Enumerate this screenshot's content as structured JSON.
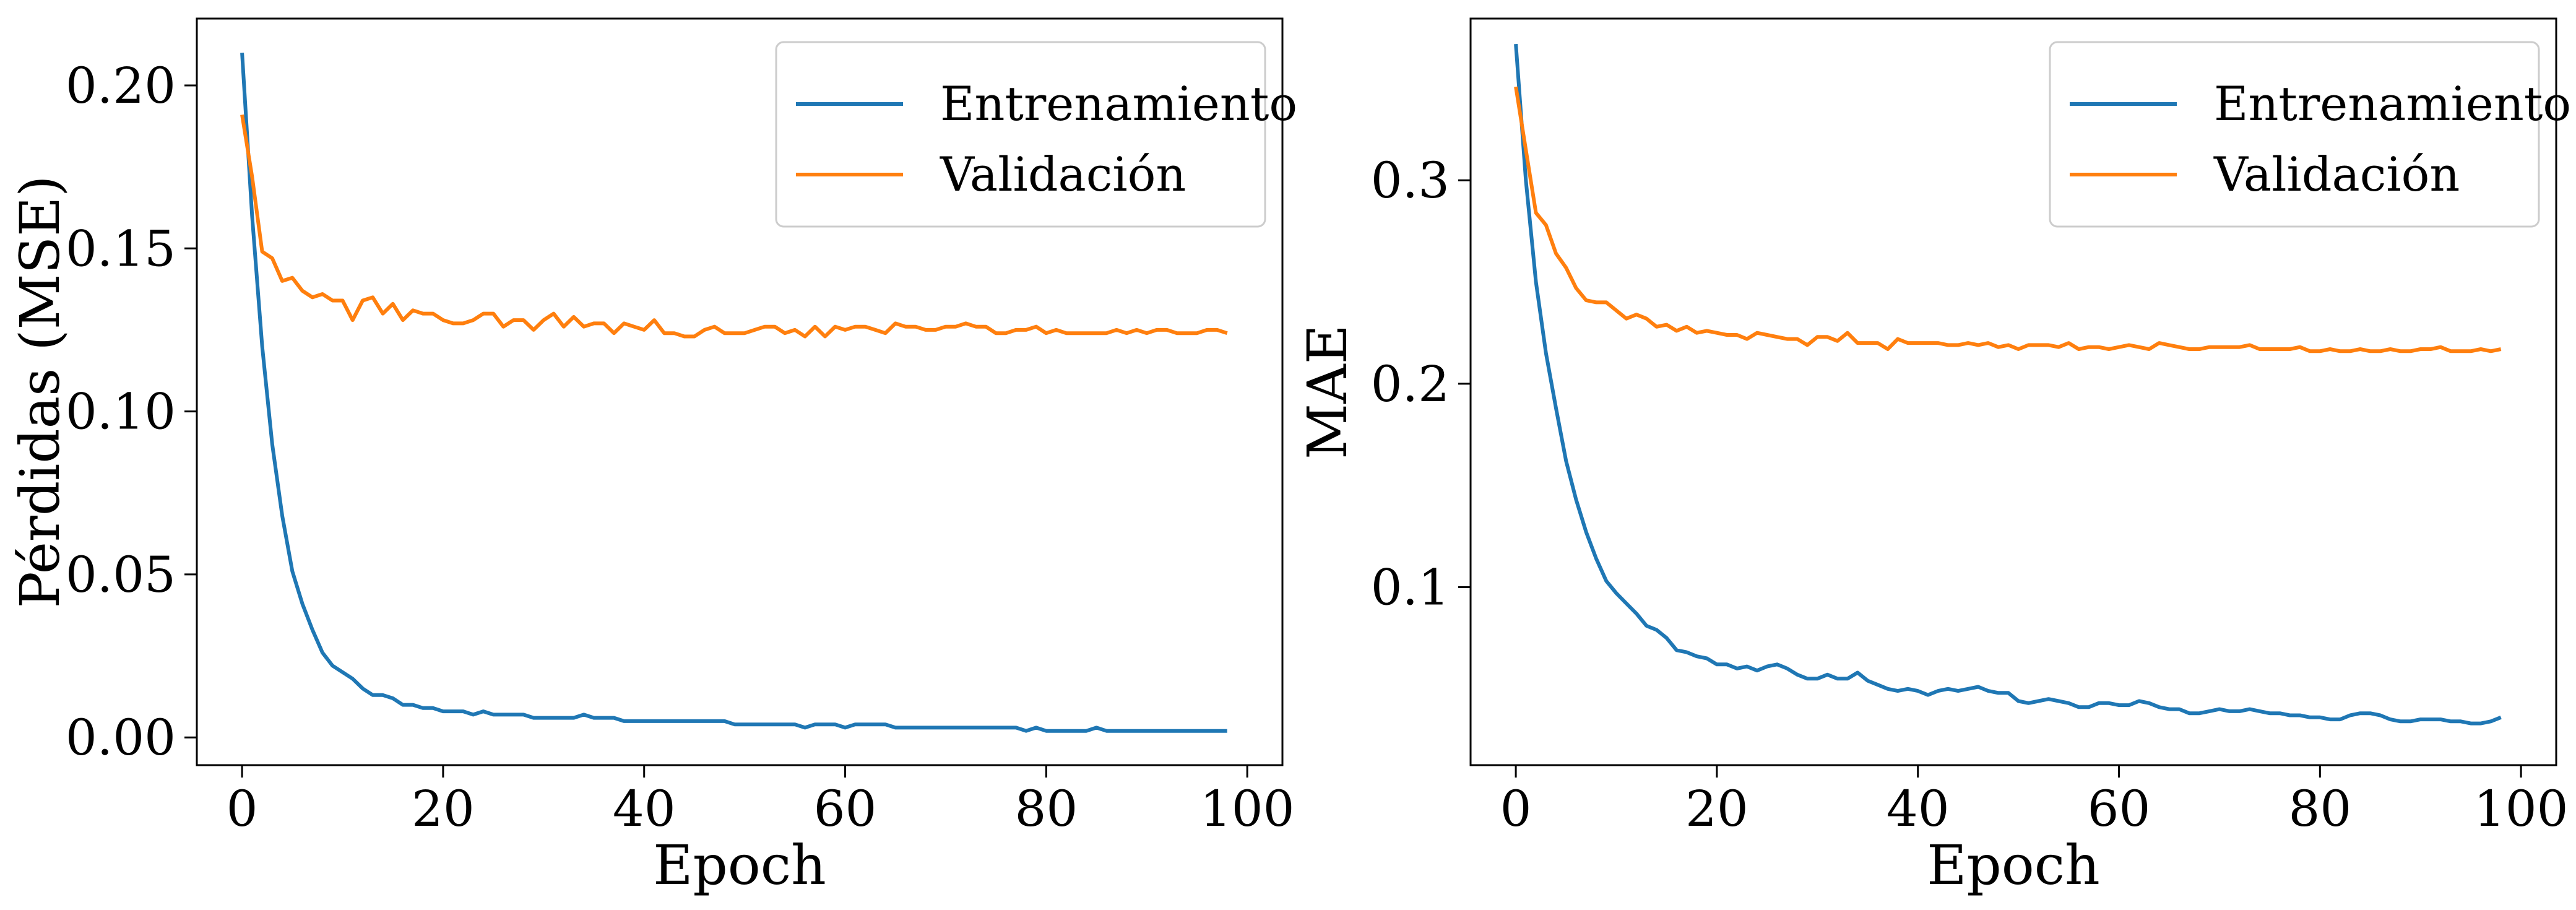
{
  "colors": {
    "train": "#1f77b4",
    "validation": "#ff7f0e"
  },
  "chart_data": [
    {
      "type": "line",
      "title": "",
      "xlabel": "Epoch",
      "ylabel": "Pérdidas (MSE)",
      "xlim": [
        -4.5,
        103.5
      ],
      "ylim": [
        -0.0085,
        0.2205
      ],
      "xticks": [
        0,
        20,
        40,
        60,
        80,
        100
      ],
      "xtick_labels": [
        "0",
        "20",
        "40",
        "60",
        "80",
        "100"
      ],
      "yticks": [
        0.0,
        0.05,
        0.1,
        0.15,
        0.2
      ],
      "ytick_labels": [
        "0.00",
        "0.05",
        "0.10",
        "0.15",
        "0.20"
      ],
      "grid": false,
      "legend": "top-right",
      "series": [
        {
          "name": "Entrenamiento",
          "color": "#1f77b4",
          "x": [
            0,
            1,
            2,
            3,
            4,
            5,
            6,
            7,
            8,
            9,
            10,
            11,
            12,
            13,
            14,
            15,
            16,
            17,
            18,
            19,
            20,
            21,
            22,
            23,
            24,
            25,
            26,
            27,
            28,
            29,
            30,
            31,
            32,
            33,
            34,
            35,
            36,
            37,
            38,
            39,
            40,
            41,
            42,
            43,
            44,
            45,
            46,
            47,
            48,
            49,
            50,
            51,
            52,
            53,
            54,
            55,
            56,
            57,
            58,
            59,
            60,
            61,
            62,
            63,
            64,
            65,
            66,
            67,
            68,
            69,
            70,
            71,
            72,
            73,
            74,
            75,
            76,
            77,
            78,
            79,
            80,
            81,
            82,
            83,
            84,
            85,
            86,
            87,
            88,
            89,
            90,
            91,
            92,
            93,
            94,
            95,
            96,
            97,
            98
          ],
          "y": [
            0.21,
            0.16,
            0.12,
            0.09,
            0.068,
            0.051,
            0.041,
            0.033,
            0.026,
            0.022,
            0.02,
            0.018,
            0.015,
            0.013,
            0.013,
            0.012,
            0.01,
            0.01,
            0.009,
            0.009,
            0.008,
            0.008,
            0.008,
            0.007,
            0.008,
            0.007,
            0.007,
            0.007,
            0.007,
            0.006,
            0.006,
            0.006,
            0.006,
            0.006,
            0.007,
            0.006,
            0.006,
            0.006,
            0.005,
            0.005,
            0.005,
            0.005,
            0.005,
            0.005,
            0.005,
            0.005,
            0.005,
            0.005,
            0.005,
            0.004,
            0.004,
            0.004,
            0.004,
            0.004,
            0.004,
            0.004,
            0.003,
            0.004,
            0.004,
            0.004,
            0.003,
            0.004,
            0.004,
            0.004,
            0.004,
            0.003,
            0.003,
            0.003,
            0.003,
            0.003,
            0.003,
            0.003,
            0.003,
            0.003,
            0.003,
            0.003,
            0.003,
            0.003,
            0.002,
            0.003,
            0.002,
            0.002,
            0.002,
            0.002,
            0.002,
            0.003,
            0.002,
            0.002,
            0.002,
            0.002,
            0.002,
            0.002,
            0.002,
            0.002,
            0.002,
            0.002,
            0.002,
            0.002,
            0.002
          ]
        },
        {
          "name": "Validación",
          "color": "#ff7f0e",
          "x": [
            0,
            1,
            2,
            3,
            4,
            5,
            6,
            7,
            8,
            9,
            10,
            11,
            12,
            13,
            14,
            15,
            16,
            17,
            18,
            19,
            20,
            21,
            22,
            23,
            24,
            25,
            26,
            27,
            28,
            29,
            30,
            31,
            32,
            33,
            34,
            35,
            36,
            37,
            38,
            39,
            40,
            41,
            42,
            43,
            44,
            45,
            46,
            47,
            48,
            49,
            50,
            51,
            52,
            53,
            54,
            55,
            56,
            57,
            58,
            59,
            60,
            61,
            62,
            63,
            64,
            65,
            66,
            67,
            68,
            69,
            70,
            71,
            72,
            73,
            74,
            75,
            76,
            77,
            78,
            79,
            80,
            81,
            82,
            83,
            84,
            85,
            86,
            87,
            88,
            89,
            90,
            91,
            92,
            93,
            94,
            95,
            96,
            97,
            98
          ],
          "y": [
            0.191,
            0.172,
            0.149,
            0.147,
            0.14,
            0.141,
            0.137,
            0.135,
            0.136,
            0.134,
            0.134,
            0.128,
            0.134,
            0.135,
            0.13,
            0.133,
            0.128,
            0.131,
            0.13,
            0.13,
            0.128,
            0.127,
            0.127,
            0.128,
            0.13,
            0.13,
            0.126,
            0.128,
            0.128,
            0.125,
            0.128,
            0.13,
            0.126,
            0.129,
            0.126,
            0.127,
            0.127,
            0.124,
            0.127,
            0.126,
            0.125,
            0.128,
            0.124,
            0.124,
            0.123,
            0.123,
            0.125,
            0.126,
            0.124,
            0.124,
            0.124,
            0.125,
            0.126,
            0.126,
            0.124,
            0.125,
            0.123,
            0.126,
            0.123,
            0.126,
            0.125,
            0.126,
            0.126,
            0.125,
            0.124,
            0.127,
            0.126,
            0.126,
            0.125,
            0.125,
            0.126,
            0.126,
            0.127,
            0.126,
            0.126,
            0.124,
            0.124,
            0.125,
            0.125,
            0.126,
            0.124,
            0.125,
            0.124,
            0.124,
            0.124,
            0.124,
            0.124,
            0.125,
            0.124,
            0.125,
            0.124,
            0.125,
            0.125,
            0.124,
            0.124,
            0.124,
            0.125,
            0.125,
            0.124
          ]
        }
      ]
    },
    {
      "type": "line",
      "title": "",
      "xlabel": "Epoch",
      "ylabel": "MAE",
      "xlim": [
        -4.5,
        103.5
      ],
      "ylim": [
        0.0125,
        0.3795
      ],
      "xticks": [
        0,
        20,
        40,
        60,
        80,
        100
      ],
      "xtick_labels": [
        "0",
        "20",
        "40",
        "60",
        "80",
        "100"
      ],
      "yticks": [
        0.1,
        0.2,
        0.3
      ],
      "ytick_labels": [
        "0.1",
        "0.2",
        "0.3"
      ],
      "grid": false,
      "legend": "top-right",
      "series": [
        {
          "name": "Entrenamiento",
          "color": "#1f77b4",
          "x": [
            0,
            1,
            2,
            3,
            4,
            5,
            6,
            7,
            8,
            9,
            10,
            11,
            12,
            13,
            14,
            15,
            16,
            17,
            18,
            19,
            20,
            21,
            22,
            23,
            24,
            25,
            26,
            27,
            28,
            29,
            30,
            31,
            32,
            33,
            34,
            35,
            36,
            37,
            38,
            39,
            40,
            41,
            42,
            43,
            44,
            45,
            46,
            47,
            48,
            49,
            50,
            51,
            52,
            53,
            54,
            55,
            56,
            57,
            58,
            59,
            60,
            61,
            62,
            63,
            64,
            65,
            66,
            67,
            68,
            69,
            70,
            71,
            72,
            73,
            74,
            75,
            76,
            77,
            78,
            79,
            80,
            81,
            82,
            83,
            84,
            85,
            86,
            87,
            88,
            89,
            90,
            91,
            92,
            93,
            94,
            95,
            96,
            97,
            98
          ],
          "y": [
            0.367,
            0.3,
            0.25,
            0.215,
            0.188,
            0.162,
            0.143,
            0.127,
            0.114,
            0.103,
            0.097,
            0.092,
            0.087,
            0.081,
            0.079,
            0.075,
            0.069,
            0.068,
            0.066,
            0.065,
            0.062,
            0.062,
            0.06,
            0.061,
            0.059,
            0.061,
            0.062,
            0.06,
            0.057,
            0.055,
            0.055,
            0.057,
            0.055,
            0.055,
            0.058,
            0.054,
            0.052,
            0.05,
            0.049,
            0.05,
            0.049,
            0.047,
            0.049,
            0.05,
            0.049,
            0.05,
            0.051,
            0.049,
            0.048,
            0.048,
            0.044,
            0.043,
            0.044,
            0.045,
            0.044,
            0.043,
            0.041,
            0.041,
            0.043,
            0.043,
            0.042,
            0.042,
            0.044,
            0.043,
            0.041,
            0.04,
            0.04,
            0.038,
            0.038,
            0.039,
            0.04,
            0.039,
            0.039,
            0.04,
            0.039,
            0.038,
            0.038,
            0.037,
            0.037,
            0.036,
            0.036,
            0.035,
            0.035,
            0.037,
            0.038,
            0.038,
            0.037,
            0.035,
            0.034,
            0.034,
            0.035,
            0.035,
            0.035,
            0.034,
            0.034,
            0.033,
            0.033,
            0.034,
            0.036
          ]
        },
        {
          "name": "Validación",
          "color": "#ff7f0e",
          "x": [
            0,
            1,
            2,
            3,
            4,
            5,
            6,
            7,
            8,
            9,
            10,
            11,
            12,
            13,
            14,
            15,
            16,
            17,
            18,
            19,
            20,
            21,
            22,
            23,
            24,
            25,
            26,
            27,
            28,
            29,
            30,
            31,
            32,
            33,
            34,
            35,
            36,
            37,
            38,
            39,
            40,
            41,
            42,
            43,
            44,
            45,
            46,
            47,
            48,
            49,
            50,
            51,
            52,
            53,
            54,
            55,
            56,
            57,
            58,
            59,
            60,
            61,
            62,
            63,
            64,
            65,
            66,
            67,
            68,
            69,
            70,
            71,
            72,
            73,
            74,
            75,
            76,
            77,
            78,
            79,
            80,
            81,
            82,
            83,
            84,
            85,
            86,
            87,
            88,
            89,
            90,
            91,
            92,
            93,
            94,
            95,
            96,
            97,
            98
          ],
          "y": [
            0.346,
            0.315,
            0.284,
            0.278,
            0.264,
            0.257,
            0.247,
            0.241,
            0.24,
            0.24,
            0.236,
            0.232,
            0.234,
            0.232,
            0.228,
            0.229,
            0.226,
            0.228,
            0.225,
            0.226,
            0.225,
            0.224,
            0.224,
            0.222,
            0.225,
            0.224,
            0.223,
            0.222,
            0.222,
            0.219,
            0.223,
            0.223,
            0.221,
            0.225,
            0.22,
            0.22,
            0.22,
            0.217,
            0.222,
            0.22,
            0.22,
            0.22,
            0.22,
            0.219,
            0.219,
            0.22,
            0.219,
            0.22,
            0.218,
            0.219,
            0.217,
            0.219,
            0.219,
            0.219,
            0.218,
            0.22,
            0.217,
            0.218,
            0.218,
            0.217,
            0.218,
            0.219,
            0.218,
            0.217,
            0.22,
            0.219,
            0.218,
            0.217,
            0.217,
            0.218,
            0.218,
            0.218,
            0.218,
            0.219,
            0.217,
            0.217,
            0.217,
            0.217,
            0.218,
            0.216,
            0.216,
            0.217,
            0.216,
            0.216,
            0.217,
            0.216,
            0.216,
            0.217,
            0.216,
            0.216,
            0.217,
            0.217,
            0.218,
            0.216,
            0.216,
            0.216,
            0.217,
            0.216,
            0.217
          ]
        }
      ]
    }
  ]
}
